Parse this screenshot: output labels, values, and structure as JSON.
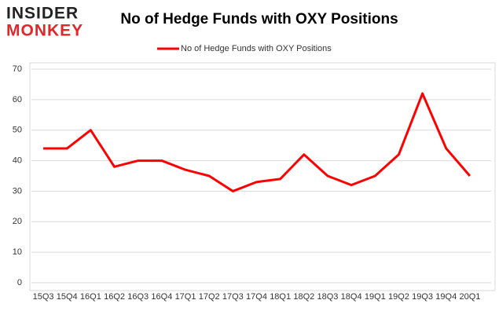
{
  "logo": {
    "top": "INSIDER",
    "bottom": "MONKEY"
  },
  "chart_data": {
    "type": "line",
    "title": "No of Hedge Funds with OXY Positions",
    "categories": [
      "15Q3",
      "15Q4",
      "16Q1",
      "16Q2",
      "16Q3",
      "16Q4",
      "17Q1",
      "17Q2",
      "17Q3",
      "17Q4",
      "18Q1",
      "18Q2",
      "18Q3",
      "18Q4",
      "19Q1",
      "19Q2",
      "19Q3",
      "19Q4",
      "20Q1"
    ],
    "series": [
      {
        "name": "No of Hedge Funds with OXY Positions",
        "color": "#ff0000",
        "values": [
          44,
          44,
          50,
          38,
          40,
          40,
          37,
          35,
          30,
          33,
          34,
          42,
          35,
          32,
          35,
          42,
          62,
          44,
          35
        ]
      }
    ],
    "ylim": [
      0,
      70
    ],
    "yticks": [
      0,
      10,
      20,
      30,
      40,
      50,
      60,
      70
    ],
    "grid": true,
    "legend": "top"
  }
}
